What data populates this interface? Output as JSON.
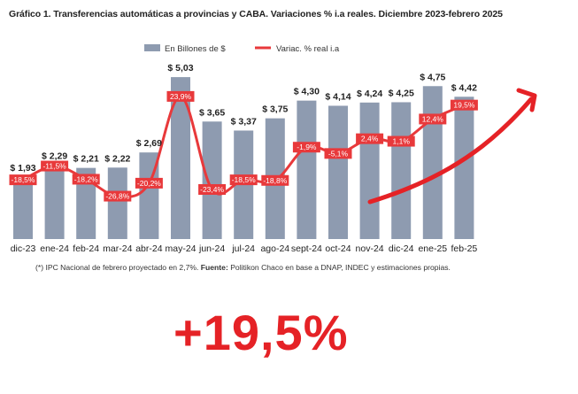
{
  "title": "Gráfico 1. Transferencias automáticas a provincias y CABA. Variaciones % i.a reales. Diciembre 2023-febrero 2025",
  "footnote": {
    "prefix": "(*) IPC Nacional de febrero proyectado en 2,7%. ",
    "source_label": "Fuente:",
    "source_text": " Politikon Chaco en base a DNAP, INDEC y estimaciones propias."
  },
  "highlight": "+19,5%",
  "colors": {
    "bar": "#8e9bb0",
    "line": "#e8393b",
    "arrow": "#e52226",
    "label_bg": "#e8393b"
  },
  "chart_data": {
    "type": "bar",
    "categories": [
      "dic-23",
      "ene-24",
      "feb-24",
      "mar-24",
      "abr-24",
      "may-24",
      "jun-24",
      "jul-24",
      "ago-24",
      "sept-24",
      "oct-24",
      "nov-24",
      "dic-24",
      "ene-25",
      "feb-25"
    ],
    "series": [
      {
        "name": "En Billones de $",
        "type": "bar",
        "values": [
          1.93,
          2.29,
          2.21,
          2.22,
          2.69,
          5.03,
          3.65,
          3.37,
          3.75,
          4.3,
          4.14,
          4.24,
          4.25,
          4.75,
          4.42
        ],
        "labels": [
          "$ 1,93",
          "$ 2,29",
          "$ 2,21",
          "$ 2,22",
          "$ 2,69",
          "$ 5,03",
          "$ 3,65",
          "$ 3,37",
          "$ 3,75",
          "$ 4,30",
          "$ 4,14",
          "$ 4,24",
          "$ 4,25",
          "$ 4,75",
          "$ 4,42"
        ]
      },
      {
        "name": "Variac. % real i.a",
        "type": "line",
        "values": [
          -18.5,
          -11.5,
          -18.2,
          -26.8,
          -20.2,
          23.9,
          -23.4,
          -18.5,
          -18.8,
          -1.9,
          -5.1,
          2.4,
          1.1,
          12.4,
          19.5
        ],
        "labels": [
          "-18,5%",
          "-11,5%",
          "-18,2%",
          "-26,8%",
          "-20,2%",
          "23,9%",
          "-23,4%",
          "-18,5%",
          "-18,8%",
          "-1,9%",
          "-5,1%",
          "2,4%",
          "1,1%",
          "12,4%",
          "19,5%"
        ]
      }
    ],
    "ylim": [
      0,
      5.5
    ],
    "y2lim": [
      -45,
      45
    ],
    "grid": false,
    "legend": "top-center"
  }
}
